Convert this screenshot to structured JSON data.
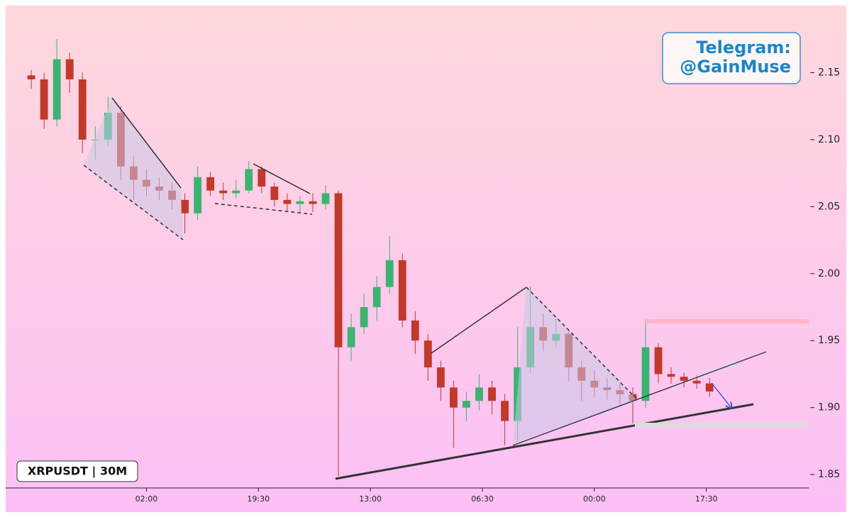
{
  "chart_data": {
    "type": "candlestick",
    "symbol_label": "XRPUSDT | 30M",
    "watermark": [
      "Telegram:",
      "@GainMuse"
    ],
    "up_color": "#3cb371",
    "down_color": "#c0392b",
    "x": [
      8,
      12,
      16,
      20,
      24,
      28,
      32,
      36,
      40,
      44,
      48,
      52,
      56,
      60,
      64,
      68,
      72,
      76,
      80,
      84,
      88,
      92,
      96,
      100,
      104,
      108,
      112,
      116,
      120,
      124,
      128,
      132,
      136,
      140,
      144,
      148,
      152,
      156,
      160,
      164,
      168,
      172,
      176,
      180,
      184,
      188,
      192,
      196,
      200,
      204,
      208,
      212,
      216,
      220
    ],
    "open": [
      2.148,
      2.145,
      2.115,
      2.16,
      2.145,
      2.1,
      2.1,
      2.12,
      2.08,
      2.07,
      2.065,
      2.062,
      2.055,
      2.045,
      2.072,
      2.062,
      2.06,
      2.062,
      2.078,
      2.065,
      2.055,
      2.052,
      2.054,
      2.052,
      2.06,
      1.945,
      1.96,
      1.975,
      1.99,
      2.01,
      1.965,
      1.95,
      1.93,
      1.915,
      1.9,
      1.905,
      1.915,
      1.905,
      1.89,
      1.93,
      1.96,
      1.95,
      1.955,
      1.93,
      1.92,
      1.915,
      1.913,
      1.91,
      1.905,
      1.945,
      1.925,
      1.923,
      1.92,
      1.918
    ],
    "high": [
      2.152,
      2.15,
      2.175,
      2.165,
      2.15,
      2.11,
      2.132,
      2.125,
      2.088,
      2.078,
      2.072,
      2.068,
      2.06,
      2.08,
      2.076,
      2.068,
      2.07,
      2.084,
      2.08,
      2.068,
      2.06,
      2.058,
      2.06,
      2.066,
      2.062,
      1.97,
      1.985,
      1.998,
      2.028,
      2.015,
      1.972,
      1.955,
      1.935,
      1.92,
      1.912,
      1.925,
      1.92,
      1.91,
      1.96,
      1.99,
      1.97,
      1.966,
      1.958,
      1.935,
      1.928,
      1.922,
      1.918,
      1.915,
      1.965,
      1.948,
      1.93,
      1.926,
      1.924,
      1.922
    ],
    "low": [
      2.138,
      2.108,
      2.11,
      2.135,
      2.09,
      2.085,
      2.095,
      2.07,
      2.055,
      2.058,
      2.055,
      2.048,
      2.03,
      2.04,
      2.058,
      2.055,
      2.056,
      2.06,
      2.06,
      2.05,
      2.047,
      2.046,
      2.046,
      2.048,
      1.849,
      1.935,
      1.955,
      1.965,
      1.985,
      1.96,
      1.94,
      1.92,
      1.905,
      1.87,
      1.89,
      1.898,
      1.895,
      1.872,
      1.875,
      1.925,
      1.942,
      1.945,
      1.92,
      1.905,
      1.908,
      1.906,
      1.902,
      1.888,
      1.9,
      1.918,
      1.918,
      1.915,
      1.914,
      1.908
    ],
    "close": [
      2.145,
      2.115,
      2.16,
      2.145,
      2.1,
      2.1,
      2.12,
      2.08,
      2.07,
      2.065,
      2.062,
      2.055,
      2.045,
      2.072,
      2.062,
      2.06,
      2.062,
      2.078,
      2.065,
      2.055,
      2.052,
      2.054,
      2.052,
      2.06,
      1.945,
      1.96,
      1.975,
      1.99,
      2.01,
      1.965,
      1.95,
      1.93,
      1.915,
      1.9,
      1.905,
      1.915,
      1.905,
      1.89,
      1.93,
      1.96,
      1.95,
      1.955,
      1.93,
      1.92,
      1.915,
      1.913,
      1.91,
      1.905,
      1.945,
      1.925,
      1.923,
      1.92,
      1.918,
      1.912
    ],
    "xlim": [
      0,
      251
    ],
    "xticks": [
      {
        "value": 44,
        "label": "02:00"
      },
      {
        "value": 79,
        "label": "19:30"
      },
      {
        "value": 114,
        "label": "13:00"
      },
      {
        "value": 149,
        "label": "06:30"
      },
      {
        "value": 184,
        "label": "00:00"
      },
      {
        "value": 219,
        "label": "17:30"
      }
    ],
    "ylim": [
      1.84,
      2.2
    ],
    "yticks": [
      1.85,
      {
        "value": 1.9,
        "label": "1.90"
      },
      1.95,
      {
        "value": 2.0,
        "label": "2.00"
      },
      2.05,
      {
        "value": 2.1,
        "label": "2.10"
      },
      2.15
    ]
  }
}
